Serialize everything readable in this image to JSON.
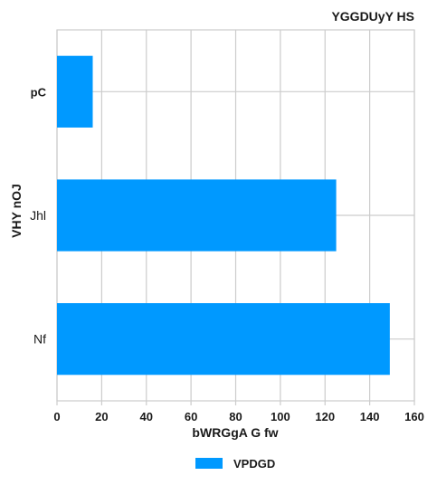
{
  "chart_data": {
    "type": "bar",
    "orientation": "horizontal",
    "title": "YGGDUyY HS",
    "xlabel": "bWRGgA G fw",
    "ylabel": "VHY nOJ",
    "categories": [
      "pC",
      "Jhl",
      "Nf"
    ],
    "series": [
      {
        "name": "VPDGD",
        "values": [
          16,
          125,
          149
        ],
        "color": "#0099ff"
      }
    ],
    "xlim": [
      0,
      160
    ],
    "x_ticks": [
      "0",
      "20",
      "40",
      "60",
      "80",
      "100",
      "120",
      "140",
      "160"
    ],
    "grid": true,
    "grid_color": "#cccccc",
    "legend_position": "bottom-center"
  }
}
